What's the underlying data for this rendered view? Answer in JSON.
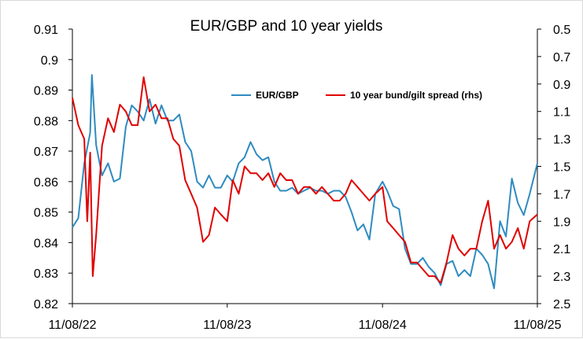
{
  "chart_data": {
    "type": "line",
    "title": "EUR/GBP and 10 year yields",
    "xlabel": "",
    "ylabel": "",
    "x_tick_labels": [
      "11/08/22",
      "11/08/23",
      "11/08/24",
      "11/08/25"
    ],
    "y_left": {
      "range": [
        0.82,
        0.91
      ],
      "ticks": [
        "0.82",
        "0.83",
        "0.84",
        "0.85",
        "0.86",
        "0.87",
        "0.88",
        "0.89",
        "0.9",
        "0.91"
      ]
    },
    "y_right": {
      "range": [
        0.5,
        2.5
      ],
      "inverted": true,
      "ticks": [
        "0.5",
        "0.7",
        "0.9",
        "1.1",
        "1.3",
        "1.5",
        "1.7",
        "1.9",
        "2.1",
        "2.3",
        "2.5"
      ]
    },
    "grid": false,
    "legend_position": "top-right",
    "series": [
      {
        "name": "EUR/GBP",
        "axis": "left",
        "color": "#2e8bc0",
        "x": [
          "2022-08-11",
          "2022-08-25",
          "2022-09-08",
          "2022-09-22",
          "2022-09-26",
          "2022-10-06",
          "2022-10-20",
          "2022-11-03",
          "2022-11-17",
          "2022-12-01",
          "2022-12-15",
          "2022-12-29",
          "2023-01-12",
          "2023-01-26",
          "2023-02-09",
          "2023-02-23",
          "2023-03-09",
          "2023-03-23",
          "2023-04-06",
          "2023-04-20",
          "2023-05-04",
          "2023-05-18",
          "2023-06-01",
          "2023-06-15",
          "2023-06-29",
          "2023-07-13",
          "2023-07-27",
          "2023-08-11",
          "2023-08-24",
          "2023-09-07",
          "2023-09-21",
          "2023-10-05",
          "2023-10-19",
          "2023-11-02",
          "2023-11-16",
          "2023-11-30",
          "2023-12-14",
          "2023-12-28",
          "2024-01-11",
          "2024-01-25",
          "2024-02-08",
          "2024-02-22",
          "2024-03-07",
          "2024-03-21",
          "2024-04-04",
          "2024-04-18",
          "2024-05-02",
          "2024-05-16",
          "2024-05-30",
          "2024-06-13",
          "2024-06-27",
          "2024-07-11",
          "2024-07-25",
          "2024-08-11",
          "2024-08-22",
          "2024-09-05",
          "2024-09-19",
          "2024-10-03",
          "2024-10-17",
          "2024-10-31",
          "2024-11-14",
          "2024-11-28",
          "2024-12-12",
          "2024-12-26",
          "2025-01-09",
          "2025-01-23",
          "2025-02-06",
          "2025-02-20",
          "2025-03-06",
          "2025-03-20",
          "2025-04-03",
          "2025-04-17",
          "2025-05-01",
          "2025-05-15",
          "2025-05-29",
          "2025-06-12",
          "2025-06-26",
          "2025-07-10",
          "2025-07-24",
          "2025-08-11"
        ],
        "values": [
          0.845,
          0.848,
          0.866,
          0.876,
          0.895,
          0.872,
          0.862,
          0.866,
          0.86,
          0.861,
          0.878,
          0.885,
          0.883,
          0.88,
          0.887,
          0.879,
          0.885,
          0.88,
          0.88,
          0.882,
          0.873,
          0.87,
          0.86,
          0.858,
          0.862,
          0.858,
          0.858,
          0.862,
          0.86,
          0.866,
          0.868,
          0.873,
          0.869,
          0.867,
          0.868,
          0.86,
          0.857,
          0.857,
          0.858,
          0.856,
          0.857,
          0.858,
          0.857,
          0.857,
          0.856,
          0.857,
          0.857,
          0.855,
          0.85,
          0.844,
          0.846,
          0.841,
          0.856,
          0.86,
          0.857,
          0.852,
          0.851,
          0.838,
          0.833,
          0.833,
          0.835,
          0.832,
          0.83,
          0.826,
          0.833,
          0.834,
          0.829,
          0.831,
          0.829,
          0.838,
          0.836,
          0.833,
          0.825,
          0.847,
          0.842,
          0.861,
          0.853,
          0.849,
          0.856,
          0.866
        ]
      },
      {
        "name": "10 year bund/gilt spread (rhs)",
        "axis": "right",
        "color": "#e00000",
        "x": [
          "2022-08-11",
          "2022-08-25",
          "2022-09-08",
          "2022-09-15",
          "2022-09-22",
          "2022-09-28",
          "2022-10-06",
          "2022-10-20",
          "2022-11-03",
          "2022-11-17",
          "2022-12-01",
          "2022-12-15",
          "2022-12-29",
          "2023-01-12",
          "2023-01-26",
          "2023-02-09",
          "2023-02-23",
          "2023-03-09",
          "2023-03-23",
          "2023-04-06",
          "2023-04-20",
          "2023-05-04",
          "2023-05-18",
          "2023-06-01",
          "2023-06-15",
          "2023-06-29",
          "2023-07-13",
          "2023-07-27",
          "2023-08-11",
          "2023-08-24",
          "2023-09-07",
          "2023-09-21",
          "2023-10-05",
          "2023-10-19",
          "2023-11-02",
          "2023-11-16",
          "2023-11-30",
          "2023-12-14",
          "2023-12-28",
          "2024-01-11",
          "2024-01-25",
          "2024-02-08",
          "2024-02-22",
          "2024-03-07",
          "2024-03-21",
          "2024-04-04",
          "2024-04-18",
          "2024-05-02",
          "2024-05-16",
          "2024-05-30",
          "2024-06-13",
          "2024-06-27",
          "2024-07-11",
          "2024-07-25",
          "2024-08-11",
          "2024-08-22",
          "2024-09-05",
          "2024-09-19",
          "2024-10-03",
          "2024-10-17",
          "2024-10-31",
          "2024-11-14",
          "2024-11-28",
          "2024-12-12",
          "2024-12-26",
          "2025-01-09",
          "2025-01-23",
          "2025-02-06",
          "2025-02-20",
          "2025-03-06",
          "2025-03-20",
          "2025-04-03",
          "2025-04-17",
          "2025-05-01",
          "2025-05-15",
          "2025-05-29",
          "2025-06-12",
          "2025-06-26",
          "2025-07-10",
          "2025-07-24",
          "2025-08-11"
        ],
        "values": [
          1.0,
          1.2,
          1.3,
          1.9,
          1.4,
          2.3,
          2.0,
          1.35,
          1.15,
          1.25,
          1.05,
          1.1,
          1.2,
          1.2,
          0.85,
          1.1,
          1.05,
          1.15,
          1.15,
          1.3,
          1.35,
          1.6,
          1.7,
          1.8,
          2.05,
          2.0,
          1.8,
          1.85,
          1.9,
          1.6,
          1.7,
          1.5,
          1.55,
          1.55,
          1.6,
          1.55,
          1.65,
          1.55,
          1.6,
          1.6,
          1.7,
          1.65,
          1.65,
          1.7,
          1.65,
          1.7,
          1.75,
          1.75,
          1.7,
          1.6,
          1.65,
          1.7,
          1.75,
          1.7,
          1.65,
          1.9,
          1.95,
          2.0,
          2.05,
          2.2,
          2.2,
          2.25,
          2.3,
          2.3,
          2.35,
          2.2,
          2.0,
          2.1,
          2.15,
          2.1,
          2.1,
          1.9,
          1.75,
          2.1,
          2.0,
          2.1,
          2.05,
          1.95,
          2.1,
          1.9,
          1.85
        ]
      }
    ]
  }
}
